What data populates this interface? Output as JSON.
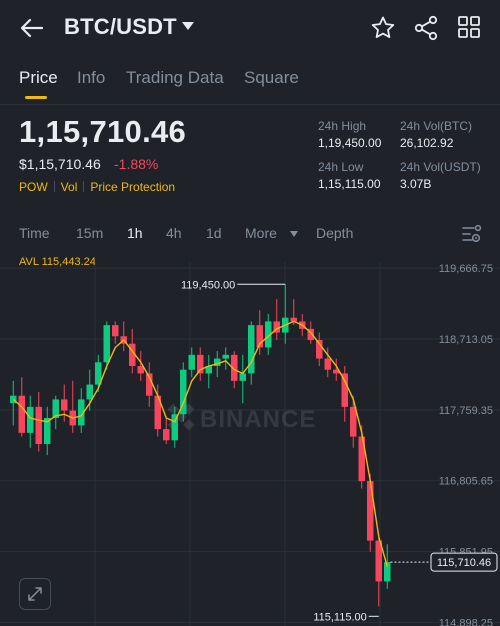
{
  "header": {
    "back_icon": "arrow-left-icon",
    "pair": "BTC/USDT",
    "icons": [
      "star-icon",
      "share-icon",
      "grid-icon"
    ]
  },
  "tabs": [
    {
      "label": "Price",
      "active": true
    },
    {
      "label": "Info",
      "active": false
    },
    {
      "label": "Trading Data",
      "active": false
    },
    {
      "label": "Square",
      "active": false
    }
  ],
  "ticker": {
    "last_price": "1,15,710.46",
    "usd_price": "$1,15,710.46",
    "change": "-1.88%",
    "tags": [
      "POW",
      "Vol",
      "Price Protection"
    ]
  },
  "stats": {
    "high_label": "24h High",
    "high_value": "1,19,450.00",
    "vol_btc_label": "24h Vol(BTC)",
    "vol_btc_value": "26,102.92",
    "low_label": "24h Low",
    "low_value": "1,15,115.00",
    "vol_usdt_label": "24h Vol(USDT)",
    "vol_usdt_value": "3.07B"
  },
  "intervals": [
    {
      "label": "Time",
      "active": false
    },
    {
      "label": "15m",
      "active": false
    },
    {
      "label": "1h",
      "active": true
    },
    {
      "label": "4h",
      "active": false
    },
    {
      "label": "1d",
      "active": false
    },
    {
      "label": "More",
      "active": false
    },
    {
      "label": "Depth",
      "active": false
    }
  ],
  "avl_label": "AVL 115,443.24",
  "watermark": "BINANCE",
  "chart_data": {
    "type": "candlestick",
    "y_ticks": [
      "119,666.75",
      "118,713.05",
      "117,759.35",
      "116,805.65",
      "115,851.95",
      "114,898.25"
    ],
    "y_tick_values": [
      119666.75,
      118713.05,
      117759.35,
      116805.65,
      115851.95,
      114898.25
    ],
    "ylim": [
      114850,
      119750
    ],
    "high_marker": "119,450.00",
    "high_marker_value": 119450.0,
    "low_marker": "115,115.00",
    "low_marker_value": 115115.0,
    "last_price_label": "115,710.46",
    "last_price_value": 115710.46,
    "colors": {
      "up": "#0ecb81",
      "down": "#f6465d",
      "ma": "#f0b90b",
      "grid": "#2b3139"
    },
    "candles": [
      [
        117850,
        118150,
        117550,
        117950
      ],
      [
        117950,
        118200,
        117400,
        117450
      ],
      [
        117450,
        117950,
        117250,
        117800
      ],
      [
        117800,
        118000,
        117200,
        117300
      ],
      [
        117300,
        117800,
        117150,
        117650
      ],
      [
        117650,
        117950,
        117500,
        117900
      ],
      [
        117900,
        118100,
        117600,
        117750
      ],
      [
        117750,
        118150,
        117450,
        117550
      ],
      [
        117550,
        118050,
        117450,
        117900
      ],
      [
        117900,
        118300,
        117750,
        118100
      ],
      [
        118100,
        118500,
        118000,
        118400
      ],
      [
        118400,
        118950,
        118300,
        118900
      ],
      [
        118900,
        118950,
        118650,
        118750
      ],
      [
        118750,
        118950,
        118550,
        118650
      ],
      [
        118650,
        118850,
        118250,
        118350
      ],
      [
        118350,
        118550,
        118150,
        118250
      ],
      [
        118250,
        118400,
        117800,
        117950
      ],
      [
        117950,
        118100,
        117400,
        117500
      ],
      [
        117500,
        117650,
        117300,
        117350
      ],
      [
        117350,
        117800,
        117250,
        117700
      ],
      [
        117700,
        118400,
        117600,
        118300
      ],
      [
        118300,
        118600,
        118200,
        118500
      ],
      [
        118500,
        118600,
        118150,
        118250
      ],
      [
        118250,
        118500,
        118050,
        118350
      ],
      [
        118350,
        118550,
        118200,
        118450
      ],
      [
        118450,
        118600,
        118300,
        118500
      ],
      [
        118500,
        118550,
        118050,
        118150
      ],
      [
        118150,
        118500,
        117850,
        118250
      ],
      [
        118250,
        118950,
        118100,
        118900
      ],
      [
        118900,
        119100,
        118500,
        118600
      ],
      [
        118600,
        119050,
        118500,
        118950
      ],
      [
        118950,
        119250,
        118700,
        118800
      ],
      [
        118800,
        119450,
        118650,
        119000
      ],
      [
        119000,
        119250,
        118900,
        118950
      ],
      [
        118950,
        119050,
        118750,
        118850
      ],
      [
        118850,
        118950,
        118650,
        118700
      ],
      [
        118700,
        118800,
        118350,
        118450
      ],
      [
        118450,
        118600,
        118200,
        118300
      ],
      [
        118300,
        118450,
        118150,
        118250
      ],
      [
        118250,
        118350,
        117600,
        117800
      ],
      [
        117800,
        117950,
        117250,
        117400
      ],
      [
        117400,
        117550,
        116700,
        116800
      ],
      [
        116800,
        116900,
        115850,
        116000
      ],
      [
        116000,
        116050,
        115115,
        115450
      ],
      [
        115450,
        115950,
        115350,
        115710.46
      ]
    ],
    "ma": [
      117900,
      117800,
      117650,
      117620,
      117600,
      117680,
      117700,
      117650,
      117680,
      117850,
      118050,
      118350,
      118600,
      118700,
      118550,
      118400,
      118200,
      117950,
      117650,
      117600,
      117850,
      118150,
      118300,
      118350,
      118380,
      118420,
      118300,
      118250,
      118400,
      118650,
      118750,
      118850,
      118900,
      118950,
      118900,
      118800,
      118650,
      118500,
      118350,
      118150,
      117900,
      117450,
      116800,
      116050,
      115650
    ]
  }
}
